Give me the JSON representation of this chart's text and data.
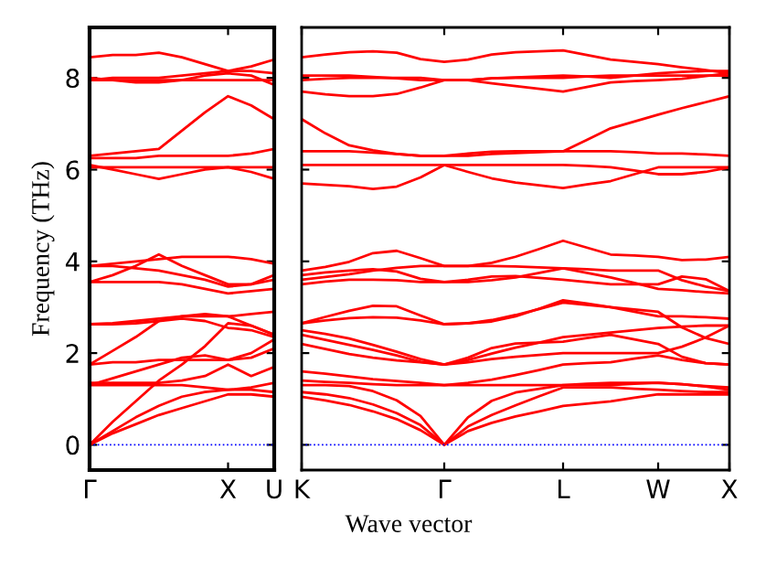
{
  "chart_data": [
    {
      "type": "line",
      "ylabel": "Frequency (THz)",
      "categories": [
        "Γ",
        null,
        null,
        null,
        null,
        null,
        "X",
        null,
        "U"
      ],
      "ylim": [
        -0.55,
        9.1
      ],
      "yticks": [
        0,
        2,
        4,
        6,
        8
      ],
      "ref_lines": [
        {
          "axis": "y",
          "value": 0,
          "color": "#0000ff",
          "line_style": "dotted"
        }
      ],
      "series": [
        {
          "color": "#ff0000",
          "values": [
            0,
            0.25,
            0.45,
            0.65,
            0.8,
            0.95,
            1.1,
            1.1,
            1.05
          ]
        },
        {
          "color": "#ff0000",
          "values": [
            0,
            0.3,
            0.6,
            0.85,
            1.05,
            1.15,
            1.2,
            1.2,
            1.15
          ]
        },
        {
          "color": "#ff0000",
          "values": [
            0,
            0.5,
            0.95,
            1.4,
            1.75,
            2.15,
            2.65,
            2.6,
            2.4
          ]
        },
        {
          "color": "#ff0000",
          "values": [
            1.3,
            1.3,
            1.3,
            1.3,
            1.3,
            1.25,
            1.2,
            1.25,
            1.35
          ]
        },
        {
          "color": "#ff0000",
          "values": [
            1.35,
            1.35,
            1.35,
            1.35,
            1.4,
            1.5,
            1.75,
            1.5,
            1.7
          ]
        },
        {
          "color": "#ff0000",
          "values": [
            1.3,
            1.45,
            1.6,
            1.75,
            1.9,
            1.95,
            1.85,
            2.0,
            2.3
          ]
        },
        {
          "color": "#ff0000",
          "values": [
            1.75,
            1.8,
            1.8,
            1.85,
            1.85,
            1.85,
            1.85,
            1.9,
            2.1
          ]
        },
        {
          "color": "#ff0000",
          "values": [
            1.75,
            2.05,
            2.35,
            2.7,
            2.8,
            2.85,
            2.8,
            2.6,
            2.4
          ]
        },
        {
          "color": "#ff0000",
          "values": [
            2.63,
            2.65,
            2.7,
            2.75,
            2.8,
            2.8,
            2.8,
            2.85,
            2.9
          ]
        },
        {
          "color": "#ff0000",
          "values": [
            2.63,
            2.63,
            2.65,
            2.7,
            2.75,
            2.7,
            2.55,
            2.5,
            2.35
          ]
        },
        {
          "color": "#ff0000",
          "values": [
            3.55,
            3.55,
            3.55,
            3.55,
            3.5,
            3.4,
            3.3,
            3.35,
            3.4
          ]
        },
        {
          "color": "#ff0000",
          "values": [
            3.55,
            3.7,
            3.9,
            4.15,
            3.9,
            3.7,
            3.5,
            3.5,
            3.7
          ]
        },
        {
          "color": "#ff0000",
          "values": [
            3.9,
            3.9,
            3.85,
            3.8,
            3.7,
            3.6,
            3.45,
            3.5,
            3.6
          ]
        },
        {
          "color": "#ff0000",
          "values": [
            3.9,
            3.95,
            4.0,
            4.05,
            4.1,
            4.1,
            4.1,
            4.05,
            3.95
          ]
        },
        {
          "color": "#ff0000",
          "values": [
            6.05,
            6.05,
            6.05,
            6.05,
            6.05,
            6.05,
            6.05,
            6.05,
            6.05
          ]
        },
        {
          "color": "#ff0000",
          "values": [
            6.1,
            6.0,
            5.9,
            5.8,
            5.9,
            6.0,
            6.05,
            5.95,
            5.8
          ]
        },
        {
          "color": "#ff0000",
          "values": [
            6.3,
            6.35,
            6.4,
            6.45,
            6.85,
            7.25,
            7.6,
            7.4,
            7.1
          ]
        },
        {
          "color": "#ff0000",
          "values": [
            6.25,
            6.25,
            6.25,
            6.3,
            6.3,
            6.3,
            6.3,
            6.35,
            6.45
          ]
        },
        {
          "color": "#ff0000",
          "values": [
            7.95,
            7.95,
            7.95,
            7.95,
            7.95,
            7.95,
            7.95,
            7.95,
            7.95
          ]
        },
        {
          "color": "#ff0000",
          "values": [
            8.0,
            7.95,
            7.9,
            7.9,
            7.95,
            8.05,
            8.1,
            8.05,
            7.85
          ]
        },
        {
          "color": "#ff0000",
          "values": [
            7.95,
            8.0,
            8.0,
            8.0,
            8.05,
            8.1,
            8.15,
            8.25,
            8.4
          ]
        },
        {
          "color": "#ff0000",
          "values": [
            8.45,
            8.5,
            8.5,
            8.55,
            8.45,
            8.3,
            8.15,
            8.15,
            8.1
          ]
        }
      ]
    },
    {
      "type": "line",
      "xlabel": "Wave vector",
      "categories": [
        "K",
        null,
        null,
        null,
        null,
        null,
        "Γ",
        null,
        null,
        null,
        null,
        "L",
        null,
        null,
        null,
        "W",
        null,
        null,
        "X"
      ],
      "ylim": [
        -0.55,
        9.1
      ],
      "yticks": [
        0,
        2,
        4,
        6,
        8
      ],
      "tick_labels": "x",
      "ref_lines": [
        {
          "axis": "y",
          "value": 0,
          "color": "#0000ff",
          "line_style": "dotted"
        }
      ],
      "series": [
        {
          "color": "#ff0000",
          "values": [
            1.05,
            0.97,
            0.87,
            0.73,
            0.56,
            0.32,
            0,
            0.3,
            0.48,
            0.62,
            0.73,
            0.85,
            0.9,
            0.95,
            1.03,
            1.1,
            1.1,
            1.1,
            1.1
          ]
        },
        {
          "color": "#ff0000",
          "values": [
            1.15,
            1.1,
            1.02,
            0.88,
            0.69,
            0.43,
            0,
            0.4,
            0.65,
            0.86,
            1.06,
            1.25,
            1.25,
            1.25,
            1.22,
            1.2,
            1.17,
            1.15,
            1.15
          ]
        },
        {
          "color": "#ff0000",
          "values": [
            1.3,
            1.3,
            1.28,
            1.17,
            0.97,
            0.63,
            0,
            0.6,
            0.96,
            1.14,
            1.22,
            1.3,
            1.33,
            1.35,
            1.35,
            1.35,
            1.32,
            1.27,
            1.2
          ]
        },
        {
          "color": "#ff0000",
          "values": [
            1.4,
            1.37,
            1.35,
            1.32,
            1.3,
            1.3,
            1.3,
            1.3,
            1.3,
            1.3,
            1.3,
            1.3,
            1.3,
            1.3,
            1.33,
            1.35,
            1.32,
            1.28,
            1.25
          ]
        },
        {
          "color": "#ff0000",
          "values": [
            1.6,
            1.55,
            1.49,
            1.43,
            1.39,
            1.35,
            1.3,
            1.35,
            1.42,
            1.52,
            1.63,
            1.75,
            1.78,
            1.8,
            1.88,
            1.95,
            1.85,
            1.78,
            1.75
          ]
        },
        {
          "color": "#ff0000",
          "values": [
            2.2,
            2.09,
            1.98,
            1.9,
            1.84,
            1.8,
            1.75,
            1.8,
            1.87,
            1.92,
            1.96,
            2.0,
            2.0,
            2.0,
            2.0,
            2.0,
            2.14,
            2.34,
            2.6
          ]
        },
        {
          "color": "#ff0000",
          "values": [
            2.4,
            2.29,
            2.18,
            2.07,
            1.95,
            1.81,
            1.75,
            1.85,
            1.99,
            2.12,
            2.23,
            2.35,
            2.4,
            2.45,
            2.5,
            2.55,
            2.58,
            2.6,
            2.6
          ]
        },
        {
          "color": "#ff0000",
          "values": [
            2.5,
            2.42,
            2.32,
            2.18,
            2.03,
            1.87,
            1.75,
            1.9,
            2.11,
            2.21,
            2.23,
            2.25,
            2.33,
            2.4,
            2.3,
            2.2,
            1.92,
            1.78,
            1.75
          ]
        },
        {
          "color": "#ff0000",
          "values": [
            2.65,
            2.71,
            2.76,
            2.78,
            2.77,
            2.71,
            2.63,
            2.65,
            2.72,
            2.83,
            2.96,
            3.1,
            3.05,
            3.0,
            2.9,
            2.8,
            2.8,
            2.78,
            2.75
          ]
        },
        {
          "color": "#ff0000",
          "values": [
            2.65,
            2.79,
            2.92,
            3.03,
            3.02,
            2.82,
            2.63,
            2.65,
            2.69,
            2.8,
            2.97,
            3.15,
            3.08,
            3.0,
            2.95,
            2.9,
            2.56,
            2.33,
            2.2
          ]
        },
        {
          "color": "#ff0000",
          "values": [
            3.5,
            3.56,
            3.6,
            3.6,
            3.59,
            3.55,
            3.55,
            3.55,
            3.59,
            3.65,
            3.75,
            3.85,
            3.75,
            3.65,
            3.53,
            3.4,
            3.37,
            3.33,
            3.3
          ]
        },
        {
          "color": "#ff0000",
          "values": [
            3.6,
            3.66,
            3.72,
            3.8,
            3.86,
            3.9,
            3.9,
            3.9,
            3.9,
            3.89,
            3.87,
            3.85,
            3.83,
            3.8,
            3.8,
            3.8,
            3.59,
            3.45,
            3.35
          ]
        },
        {
          "color": "#ff0000",
          "values": [
            3.8,
            3.88,
            3.99,
            4.18,
            4.23,
            4.07,
            3.9,
            3.9,
            3.97,
            4.1,
            4.27,
            4.45,
            4.3,
            4.15,
            4.13,
            4.1,
            4.03,
            4.04,
            4.1
          ]
        },
        {
          "color": "#ff0000",
          "values": [
            3.7,
            3.76,
            3.8,
            3.83,
            3.78,
            3.62,
            3.55,
            3.6,
            3.67,
            3.68,
            3.64,
            3.6,
            3.55,
            3.5,
            3.5,
            3.5,
            3.67,
            3.61,
            3.35
          ]
        },
        {
          "color": "#ff0000",
          "values": [
            5.7,
            5.67,
            5.64,
            5.58,
            5.63,
            5.83,
            6.1,
            5.95,
            5.81,
            5.72,
            5.66,
            5.6,
            5.68,
            5.75,
            5.9,
            6.05,
            6.05,
            6.05,
            6.05
          ]
        },
        {
          "color": "#ff0000",
          "values": [
            6.1,
            6.1,
            6.1,
            6.1,
            6.1,
            6.1,
            6.1,
            6.1,
            6.1,
            6.1,
            6.1,
            6.1,
            6.08,
            6.05,
            5.98,
            5.9,
            5.9,
            5.95,
            6.05
          ]
        },
        {
          "color": "#ff0000",
          "values": [
            6.4,
            6.4,
            6.4,
            6.37,
            6.34,
            6.3,
            6.3,
            6.35,
            6.39,
            6.4,
            6.4,
            6.4,
            6.4,
            6.4,
            6.38,
            6.35,
            6.35,
            6.33,
            6.3
          ]
        },
        {
          "color": "#ff0000",
          "values": [
            7.1,
            6.79,
            6.53,
            6.42,
            6.34,
            6.3,
            6.3,
            6.3,
            6.34,
            6.36,
            6.38,
            6.4,
            6.65,
            6.9,
            7.05,
            7.2,
            7.34,
            7.47,
            7.6
          ]
        },
        {
          "color": "#ff0000",
          "values": [
            7.7,
            7.64,
            7.6,
            7.6,
            7.65,
            7.79,
            7.95,
            7.95,
            7.88,
            7.82,
            7.76,
            7.7,
            7.8,
            7.9,
            7.93,
            7.95,
            7.98,
            8.04,
            8.1
          ]
        },
        {
          "color": "#ff0000",
          "values": [
            7.95,
            7.98,
            8.0,
            8.0,
            8.0,
            8.0,
            7.95,
            7.95,
            7.99,
            8.0,
            8.0,
            8.0,
            8.03,
            8.05,
            8.05,
            8.05,
            8.05,
            8.05,
            8.05
          ]
        },
        {
          "color": "#ff0000",
          "values": [
            8.05,
            8.05,
            8.05,
            8.02,
            7.99,
            7.95,
            7.95,
            7.95,
            7.99,
            8.01,
            8.03,
            8.05,
            8.03,
            8.0,
            8.05,
            8.1,
            8.13,
            8.15,
            8.15
          ]
        },
        {
          "color": "#ff0000",
          "values": [
            8.45,
            8.51,
            8.56,
            8.58,
            8.55,
            8.41,
            8.35,
            8.4,
            8.51,
            8.56,
            8.58,
            8.6,
            8.5,
            8.4,
            8.35,
            8.3,
            8.23,
            8.17,
            8.1
          ]
        }
      ]
    }
  ]
}
